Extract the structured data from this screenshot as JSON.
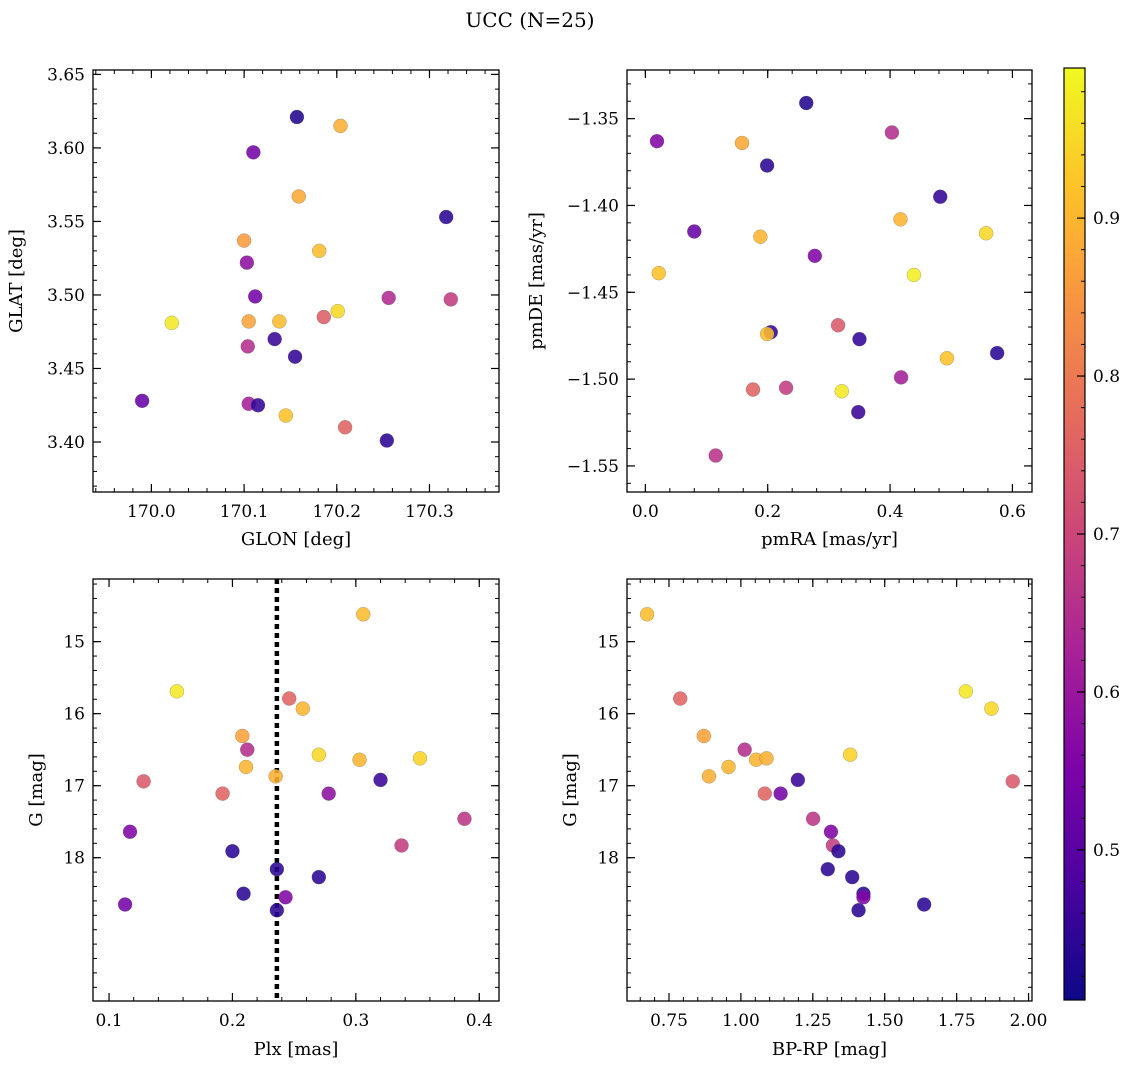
{
  "figure": {
    "title": "UCC (N=25)",
    "colormap": "plasma"
  },
  "chart_data": [
    {
      "type": "scatter",
      "xlabel": "GLON [deg]",
      "ylabel": "GLAT [deg]",
      "xlim": [
        169.937,
        170.375
      ],
      "ylim": [
        3.366,
        3.653
      ],
      "xticks": [
        170.0,
        170.1,
        170.2,
        170.3
      ],
      "xtick_labels": [
        "170.0",
        "170.1",
        "170.2",
        "170.3"
      ],
      "yticks": [
        3.4,
        3.45,
        3.5,
        3.55,
        3.6,
        3.65
      ],
      "ytick_labels": [
        "3.40",
        "3.45",
        "3.50",
        "3.55",
        "3.60",
        "3.65"
      ],
      "y_inverted": false,
      "x": [
        170.157,
        170.204,
        170.11,
        170.159,
        170.318,
        170.1,
        170.181,
        170.103,
        170.022,
        170.105,
        170.138,
        170.112,
        170.256,
        170.323,
        170.201,
        170.186,
        170.133,
        170.104,
        170.155,
        169.99,
        170.105,
        170.115,
        170.145,
        170.209,
        170.254
      ],
      "y": [
        3.621,
        3.615,
        3.597,
        3.567,
        3.553,
        3.537,
        3.53,
        3.522,
        3.481,
        3.482,
        3.482,
        3.499,
        3.498,
        3.497,
        3.489,
        3.485,
        3.47,
        3.465,
        3.458,
        3.428,
        3.426,
        3.425,
        3.418,
        3.41,
        3.401
      ],
      "c": [
        0.43,
        0.89,
        0.54,
        0.88,
        0.44,
        0.86,
        0.91,
        0.58,
        0.97,
        0.87,
        0.91,
        0.54,
        0.64,
        0.68,
        0.95,
        0.75,
        0.46,
        0.65,
        0.45,
        0.52,
        0.62,
        0.45,
        0.92,
        0.76,
        0.44
      ]
    },
    {
      "type": "scatter",
      "xlabel": "pmRA [mas/yr]",
      "ylabel": "pmDE [mas/yr]",
      "xlim": [
        -0.03,
        0.632
      ],
      "ylim": [
        -1.565,
        -1.322
      ],
      "xticks": [
        0.0,
        0.2,
        0.4,
        0.6
      ],
      "xtick_labels": [
        "0.0",
        "0.2",
        "0.4",
        "0.6"
      ],
      "yticks": [
        -1.55,
        -1.5,
        -1.45,
        -1.4,
        -1.35
      ],
      "ytick_labels": [
        "−1.55",
        "−1.50",
        "−1.45",
        "−1.40",
        "−1.35"
      ],
      "y_inverted": false,
      "x": [
        0.263,
        0.019,
        0.158,
        0.403,
        0.199,
        0.482,
        0.417,
        0.557,
        0.08,
        0.188,
        0.277,
        0.022,
        0.439,
        0.205,
        0.199,
        0.315,
        0.35,
        0.575,
        0.493,
        0.418,
        0.176,
        0.23,
        0.321,
        0.348,
        0.115
      ],
      "y": [
        -1.341,
        -1.363,
        -1.364,
        -1.358,
        -1.377,
        -1.395,
        -1.408,
        -1.416,
        -1.415,
        -1.418,
        -1.429,
        -1.439,
        -1.44,
        -1.473,
        -1.474,
        -1.469,
        -1.477,
        -1.485,
        -1.488,
        -1.499,
        -1.506,
        -1.505,
        -1.507,
        -1.519,
        -1.544
      ],
      "c": [
        0.43,
        0.56,
        0.88,
        0.65,
        0.44,
        0.45,
        0.9,
        0.95,
        0.52,
        0.9,
        0.56,
        0.92,
        0.98,
        0.45,
        0.91,
        0.74,
        0.45,
        0.44,
        0.92,
        0.62,
        0.76,
        0.68,
        0.97,
        0.46,
        0.66
      ]
    },
    {
      "type": "scatter",
      "xlabel": "Plx [mas]",
      "ylabel": "G [mag]",
      "xlim": [
        0.087,
        0.416
      ],
      "ylim": [
        14.13,
        19.99
      ],
      "xticks": [
        0.1,
        0.2,
        0.3,
        0.4
      ],
      "xtick_labels": [
        "0.1",
        "0.2",
        "0.3",
        "0.4"
      ],
      "yticks": [
        15,
        16,
        17,
        18
      ],
      "ytick_labels": [
        "15",
        "16",
        "17",
        "18"
      ],
      "y_inverted": true,
      "vline": 0.236,
      "x": [
        0.306,
        0.155,
        0.246,
        0.257,
        0.208,
        0.212,
        0.211,
        0.27,
        0.303,
        0.352,
        0.235,
        0.128,
        0.192,
        0.32,
        0.278,
        0.388,
        0.117,
        0.337,
        0.2,
        0.236,
        0.27,
        0.209,
        0.243,
        0.113,
        0.236
      ],
      "y": [
        14.62,
        15.69,
        15.79,
        15.93,
        16.31,
        16.5,
        16.74,
        16.57,
        16.64,
        16.62,
        16.87,
        16.94,
        17.11,
        16.92,
        17.11,
        17.46,
        17.64,
        17.83,
        17.91,
        18.16,
        18.27,
        18.5,
        18.55,
        18.65,
        18.73
      ],
      "c": [
        0.91,
        0.97,
        0.76,
        0.9,
        0.87,
        0.65,
        0.9,
        0.95,
        0.9,
        0.94,
        0.89,
        0.74,
        0.76,
        0.46,
        0.58,
        0.67,
        0.56,
        0.68,
        0.44,
        0.44,
        0.44,
        0.44,
        0.56,
        0.54,
        0.44
      ]
    },
    {
      "type": "scatter",
      "xlabel": "BP-RP [mag]",
      "ylabel": "G [mag]",
      "xlim": [
        0.604,
        2.012
      ],
      "ylim": [
        14.13,
        19.99
      ],
      "xticks": [
        0.75,
        1.0,
        1.25,
        1.5,
        1.75,
        2.0
      ],
      "xtick_labels": [
        "0.75",
        "1.00",
        "1.25",
        "1.50",
        "1.75",
        "2.00"
      ],
      "yticks": [
        15,
        16,
        17,
        18
      ],
      "ytick_labels": [
        "15",
        "16",
        "17",
        "18"
      ],
      "y_inverted": true,
      "x": [
        0.674,
        0.789,
        0.871,
        1.782,
        1.871,
        1.013,
        0.957,
        1.053,
        1.089,
        1.38,
        0.889,
        1.945,
        1.083,
        1.198,
        1.138,
        1.251,
        1.313,
        1.32,
        1.339,
        1.302,
        1.387,
        1.426,
        1.426,
        1.637,
        1.409
      ],
      "y": [
        14.62,
        15.79,
        16.31,
        15.69,
        15.93,
        16.5,
        16.74,
        16.64,
        16.62,
        16.57,
        16.87,
        16.94,
        17.11,
        16.92,
        17.11,
        17.46,
        17.64,
        17.83,
        17.91,
        18.16,
        18.27,
        18.5,
        18.55,
        18.65,
        18.73
      ],
      "c": [
        0.91,
        0.76,
        0.87,
        0.97,
        0.95,
        0.65,
        0.9,
        0.9,
        0.89,
        0.94,
        0.89,
        0.74,
        0.76,
        0.46,
        0.54,
        0.67,
        0.56,
        0.68,
        0.44,
        0.44,
        0.44,
        0.44,
        0.56,
        0.44,
        0.44
      ]
    }
  ],
  "colorbar": {
    "range": [
      0.405,
      0.995
    ],
    "ticks": [
      0.5,
      0.6,
      0.7,
      0.8,
      0.9
    ],
    "tick_labels": [
      "0.5",
      "0.6",
      "0.7",
      "0.8",
      "0.9"
    ]
  }
}
